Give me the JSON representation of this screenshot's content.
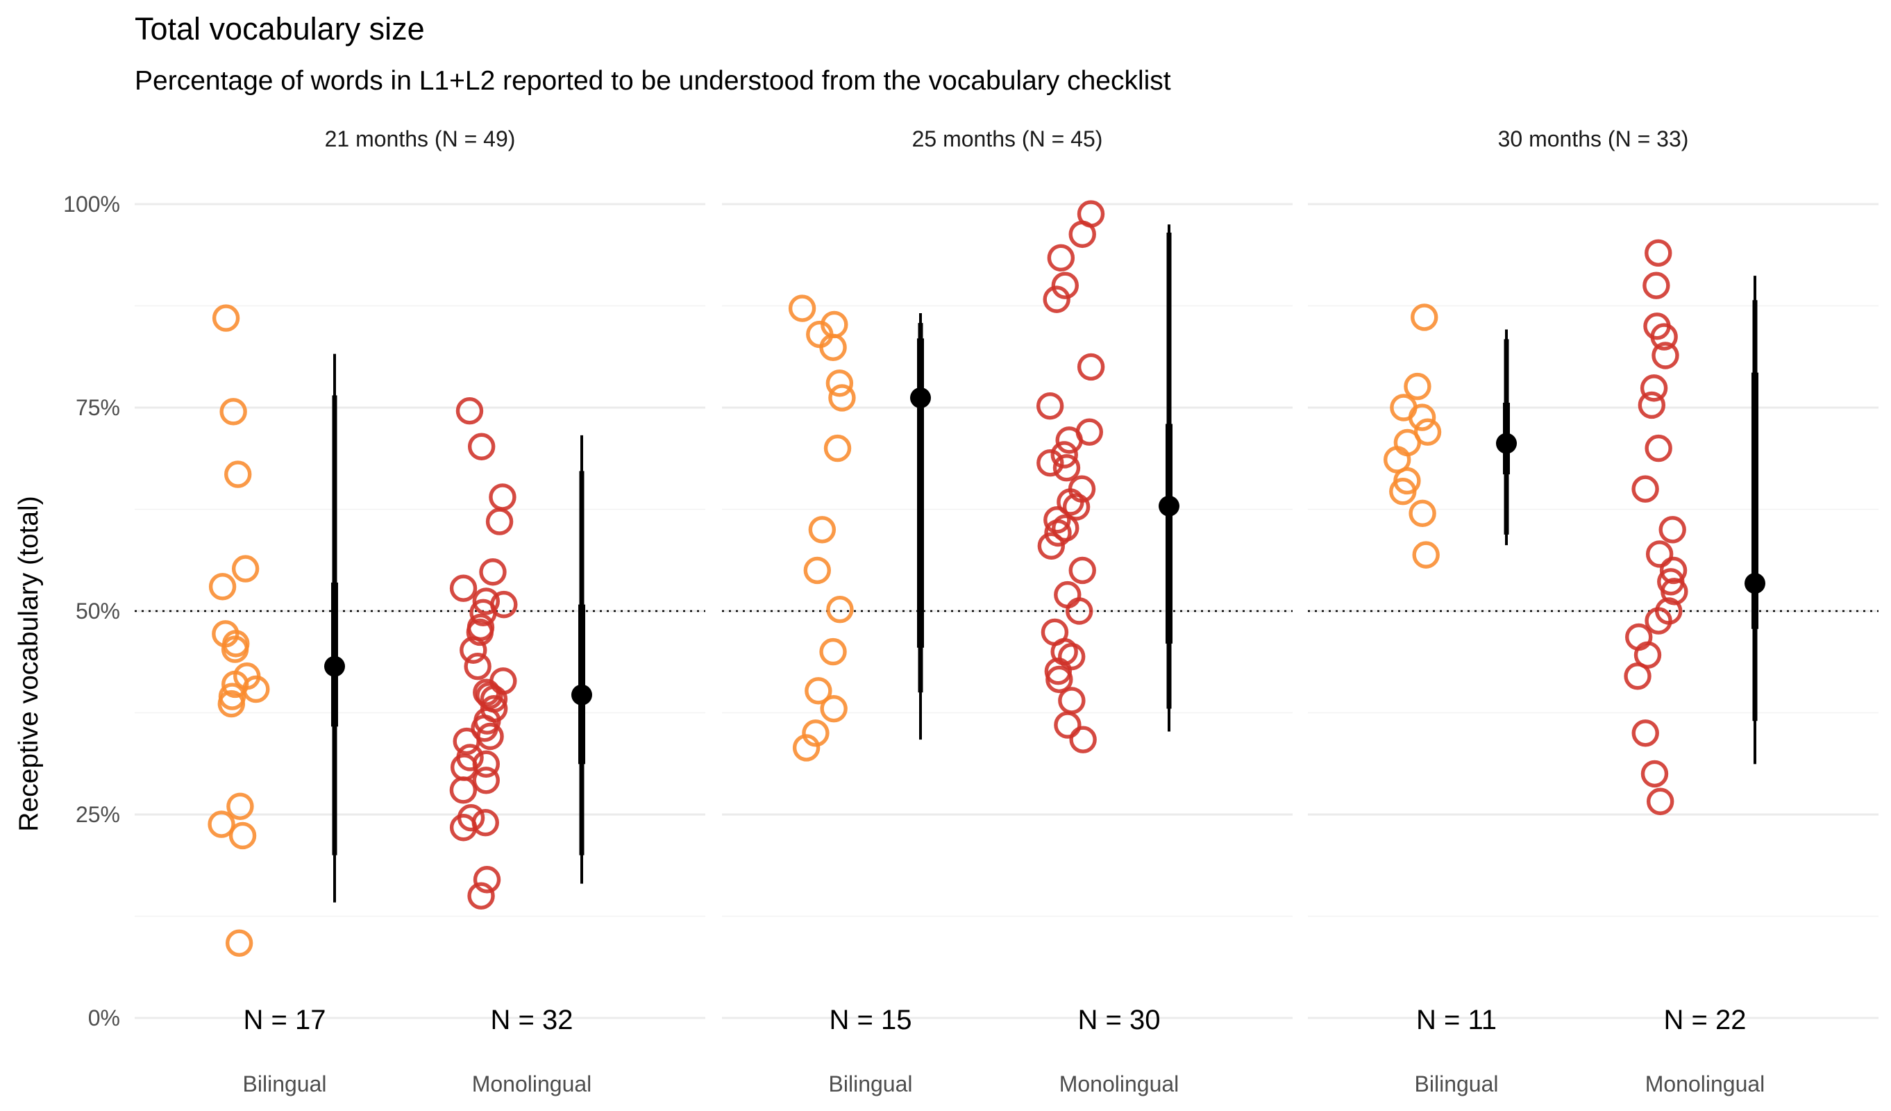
{
  "chart_data": {
    "type": "scatter",
    "title": "Total vocabulary size",
    "subtitle": "Percentage of words in L1+L2 reported to be understood from the vocabulary checklist",
    "ylabel": "Receptive vocabulary (total)",
    "xlabel": "",
    "ylim": [
      0,
      100
    ],
    "yticks": [
      "0%",
      "25%",
      "50%",
      "75%",
      "100%"
    ],
    "reference_line": 50,
    "categories": [
      "Bilingual",
      "Monolingual"
    ],
    "colors": {
      "Bilingual": "#f98b2e",
      "Monolingual": "#cf3128",
      "summary": "#000000"
    },
    "panels": [
      {
        "label": "21 months (N = 49)",
        "groups": [
          {
            "name": "Bilingual",
            "n_label": "N = 17",
            "values": [
              86,
              74.5,
              66.8,
              55.2,
              53,
              47.2,
              46,
              45.3,
              41,
              40.4,
              39.5,
              38.6,
              26,
              23.8,
              22.4,
              9.2,
              42
            ],
            "summary": {
              "median": 43.2,
              "inner": [
                35.8,
                53.5
              ],
              "mid": [
                20,
                76.5
              ],
              "outer": [
                14.2,
                81.6
              ]
            }
          },
          {
            "name": "Monolingual",
            "n_label": "N = 32",
            "values": [
              74.6,
              70.2,
              64,
              61,
              54.8,
              52.8,
              51.2,
              50.8,
              49.8,
              47.4,
              45.2,
              43.2,
              41.4,
              40,
              39.6,
              39.2,
              35.6,
              34.6,
              34,
              32,
              31.2,
              30.8,
              29.2,
              24.6,
              24,
              23.4,
              17,
              15,
              48,
              38,
              36.5,
              28
            ],
            "summary": {
              "median": 39.7,
              "inner": [
                31.2,
                50.8
              ],
              "mid": [
                20,
                67.2
              ],
              "outer": [
                16.5,
                71.6
              ]
            }
          }
        ]
      },
      {
        "label": "25 months (N = 45)",
        "groups": [
          {
            "name": "Bilingual",
            "n_label": "N = 15",
            "values": [
              87.2,
              85.2,
              82.4,
              76.2,
              50.2,
              40.2,
              33.2,
              84,
              78,
              55,
              45,
              60,
              70,
              38,
              35
            ],
            "summary": {
              "median": 76.2,
              "inner": [
                45.5,
                83.5
              ],
              "mid": [
                40,
                85.4
              ],
              "outer": [
                34.2,
                86.6
              ]
            }
          },
          {
            "name": "Monolingual",
            "n_label": "N = 30",
            "values": [
              98.8,
              96.3,
              93.4,
              88.3,
              75.2,
              71,
              69.2,
              68.2,
              67.6,
              63.4,
              62.8,
              61.2,
              60.2,
              59.6,
              47.4,
              44.4,
              42.6,
              41.6,
              36,
              34.2,
              90,
              80,
              72,
              65,
              58,
              55,
              52,
              50,
              45,
              39
            ],
            "summary": {
              "median": 62.9,
              "inner": [
                46,
                73
              ],
              "mid": [
                38,
                96.5
              ],
              "outer": [
                35.2,
                97.5
              ]
            }
          }
        ]
      },
      {
        "label": "30 months (N = 33)",
        "groups": [
          {
            "name": "Bilingual",
            "n_label": "N = 11",
            "values": [
              86.1,
              77.6,
              73.8,
              70.7,
              68.6,
              64.7,
              56.9,
              72,
              66,
              62,
              75
            ],
            "summary": {
              "median": 70.6,
              "inner": [
                66.8,
                75.6
              ],
              "mid": [
                59.4,
                83.4
              ],
              "outer": [
                58.1,
                84.6
              ]
            }
          },
          {
            "name": "Monolingual",
            "n_label": "N = 22",
            "values": [
              94,
              83.7,
              81.4,
              77.4,
              75.3,
              53.6,
              52.4,
              48.8,
              46.8,
              44.6,
              26.6,
              90,
              85,
              70,
              65,
              60,
              57,
              55,
              50,
              42,
              35,
              30
            ],
            "summary": {
              "median": 53.4,
              "inner": [
                47.8,
                79.3
              ],
              "mid": [
                36.5,
                88.2
              ],
              "outer": [
                31.2,
                91.2
              ]
            }
          }
        ]
      }
    ]
  }
}
